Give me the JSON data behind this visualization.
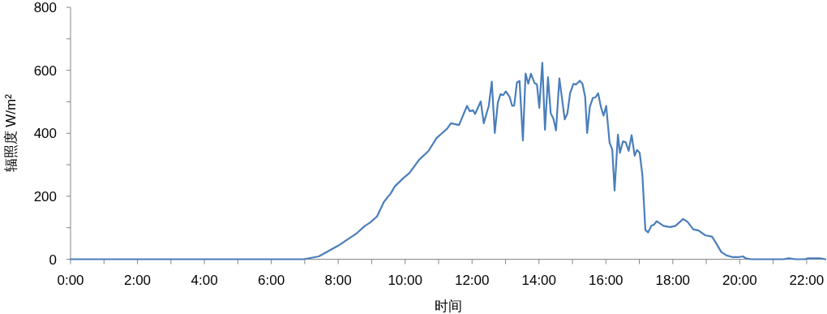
{
  "chart_data": {
    "type": "line",
    "xlabel": "时间",
    "ylabel": "辐照度 W/m²",
    "color": "#4a7ebb",
    "line_style": "solid",
    "xlim": [
      0,
      22.56
    ],
    "ylim": [
      0,
      800
    ],
    "xticks": [
      {
        "value": 0,
        "label": "0:00"
      },
      {
        "value": 1,
        "label": null
      },
      {
        "value": 2,
        "label": "2:00"
      },
      {
        "value": 3,
        "label": null
      },
      {
        "value": 4,
        "label": "4:00"
      },
      {
        "value": 5,
        "label": null
      },
      {
        "value": 6,
        "label": "6:00"
      },
      {
        "value": 7,
        "label": null
      },
      {
        "value": 8,
        "label": "8:00"
      },
      {
        "value": 9,
        "label": null
      },
      {
        "value": 10,
        "label": "10:00"
      },
      {
        "value": 11,
        "label": null
      },
      {
        "value": 12,
        "label": "12:00"
      },
      {
        "value": 13,
        "label": null
      },
      {
        "value": 14,
        "label": "14:00"
      },
      {
        "value": 15,
        "label": null
      },
      {
        "value": 16,
        "label": "16:00"
      },
      {
        "value": 17,
        "label": null
      },
      {
        "value": 18,
        "label": "18:00"
      },
      {
        "value": 19,
        "label": null
      },
      {
        "value": 20,
        "label": "20:00"
      },
      {
        "value": 21,
        "label": null
      },
      {
        "value": 22,
        "label": "22:00"
      }
    ],
    "yticks": [
      0,
      {
        "value": 100,
        "label": null
      },
      200,
      {
        "value": 300,
        "label": null
      },
      400,
      {
        "value": 500,
        "label": null
      },
      600,
      {
        "value": 700,
        "label": null
      },
      800
    ],
    "x": [
      0,
      3,
      6.97,
      7.42,
      8.0,
      8.56,
      8.8,
      8.96,
      9.16,
      9.37,
      9.57,
      9.69,
      9.93,
      10.13,
      10.42,
      10.7,
      10.94,
      11.14,
      11.26,
      11.37,
      11.61,
      11.85,
      11.93,
      12.03,
      12.09,
      12.26,
      12.35,
      12.5,
      12.59,
      12.68,
      12.77,
      12.85,
      12.93,
      13.01,
      13.12,
      13.2,
      13.26,
      13.34,
      13.42,
      13.52,
      13.6,
      13.68,
      13.76,
      13.87,
      13.94,
      14.01,
      14.1,
      14.18,
      14.27,
      14.35,
      14.43,
      14.51,
      14.61,
      14.77,
      14.85,
      14.93,
      15.03,
      15.11,
      15.22,
      15.3,
      15.38,
      15.44,
      15.52,
      15.61,
      15.69,
      15.77,
      15.85,
      15.93,
      16.01,
      16.11,
      16.19,
      16.26,
      16.36,
      16.42,
      16.51,
      16.59,
      16.68,
      16.77,
      16.86,
      16.93,
      17.01,
      17.09,
      17.18,
      17.26,
      17.36,
      17.44,
      17.52,
      17.72,
      17.92,
      18.08,
      18.31,
      18.44,
      18.61,
      18.77,
      18.97,
      19.17,
      19.25,
      19.45,
      19.61,
      19.78,
      19.98,
      20.1,
      20.18,
      20.34,
      20.58,
      21.3,
      21.47,
      21.67,
      21.95,
      22.04,
      22.4,
      22.56
    ],
    "values": [
      0,
      0,
      0,
      9,
      43,
      83,
      106,
      117,
      136,
      183,
      209,
      231,
      256,
      274,
      316,
      344,
      385,
      404,
      415,
      432,
      426,
      487,
      470,
      473,
      461,
      501,
      432,
      487,
      564,
      401,
      497,
      524,
      521,
      533,
      516,
      487,
      488,
      561,
      566,
      377,
      590,
      557,
      589,
      559,
      555,
      481,
      624,
      411,
      578,
      464,
      447,
      409,
      574,
      444,
      463,
      527,
      557,
      555,
      567,
      557,
      516,
      401,
      484,
      512,
      514,
      527,
      484,
      456,
      487,
      370,
      349,
      218,
      396,
      338,
      374,
      372,
      344,
      394,
      329,
      347,
      338,
      269,
      93,
      85,
      106,
      110,
      121,
      106,
      102,
      106,
      128,
      119,
      95,
      91,
      76,
      72,
      59,
      23,
      12,
      7,
      7,
      9,
      3,
      0,
      0,
      0,
      3,
      0,
      0,
      3,
      3,
      0
    ]
  }
}
